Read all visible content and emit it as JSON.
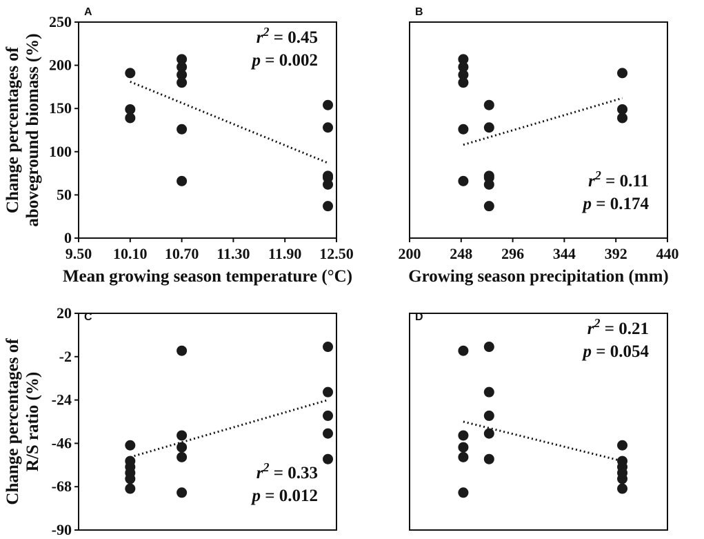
{
  "chart_data": [
    {
      "panel": "A",
      "type": "scatter",
      "xlabel": "Mean growing season temperature (°C)",
      "ylabel": [
        "Change percentages of",
        "aboveground biomass (%)"
      ],
      "xlim": [
        9.5,
        12.5
      ],
      "ylim": [
        0,
        250
      ],
      "xticks": [
        "9.50",
        "10.10",
        "10.70",
        "11.30",
        "11.90",
        "12.50"
      ],
      "yticks": [
        "0",
        "50",
        "100",
        "150",
        "200",
        "250"
      ],
      "points": [
        [
          10.1,
          191
        ],
        [
          10.1,
          149
        ],
        [
          10.1,
          139
        ],
        [
          10.7,
          207
        ],
        [
          10.7,
          198
        ],
        [
          10.7,
          189
        ],
        [
          10.7,
          180
        ],
        [
          10.7,
          126
        ],
        [
          10.7,
          66
        ],
        [
          12.4,
          154
        ],
        [
          12.4,
          128
        ],
        [
          12.4,
          72
        ],
        [
          12.4,
          70
        ],
        [
          12.4,
          62
        ],
        [
          12.4,
          37
        ]
      ],
      "trendline": [
        [
          10.1,
          181
        ],
        [
          12.4,
          87
        ]
      ],
      "stats": {
        "r2_label": "r",
        "r2_sup": "2",
        "r2_value": " = 0.45",
        "p_label": "p",
        "p_value": " = 0.002",
        "position": "top-right"
      }
    },
    {
      "panel": "B",
      "type": "scatter",
      "xlabel": "Growing season precipitation (mm)",
      "ylabel": [],
      "xlim": [
        200,
        440
      ],
      "ylim": [
        0,
        250
      ],
      "xticks": [
        "200",
        "248",
        "296",
        "344",
        "392",
        "440"
      ],
      "yticks": [],
      "points": [
        [
          250,
          207
        ],
        [
          250,
          198
        ],
        [
          250,
          189
        ],
        [
          250,
          180
        ],
        [
          250,
          126
        ],
        [
          250,
          66
        ],
        [
          274,
          154
        ],
        [
          274,
          128
        ],
        [
          274,
          72
        ],
        [
          274,
          70
        ],
        [
          274,
          62
        ],
        [
          274,
          37
        ],
        [
          398,
          191
        ],
        [
          398,
          149
        ],
        [
          398,
          139
        ]
      ],
      "trendline": [
        [
          250,
          108
        ],
        [
          398,
          162
        ]
      ],
      "stats": {
        "r2_label": "r",
        "r2_sup": "2",
        "r2_value": " = 0.11",
        "p_label": "p",
        "p_value": " = 0.174",
        "position": "bottom-right"
      }
    },
    {
      "panel": "C",
      "type": "scatter",
      "xlabel": "",
      "ylabel": [
        "Change percentages of",
        "R/S ratio (%)"
      ],
      "xlim": [
        9.5,
        12.5
      ],
      "ylim": [
        -90,
        20
      ],
      "xticks": [],
      "yticks": [
        "-90",
        "-68",
        "-46",
        "-24",
        "-2",
        "20"
      ],
      "points": [
        [
          10.1,
          -47
        ],
        [
          10.1,
          -55
        ],
        [
          10.1,
          -58
        ],
        [
          10.1,
          -61
        ],
        [
          10.1,
          -64
        ],
        [
          10.1,
          -69
        ],
        [
          10.7,
          1
        ],
        [
          10.7,
          -42
        ],
        [
          10.7,
          -48
        ],
        [
          10.7,
          -53
        ],
        [
          10.7,
          -71
        ],
        [
          12.4,
          3
        ],
        [
          12.4,
          -20
        ],
        [
          12.4,
          -32
        ],
        [
          12.4,
          -41
        ],
        [
          12.4,
          -54
        ]
      ],
      "trendline": [
        [
          10.1,
          -53
        ],
        [
          12.4,
          -24
        ]
      ],
      "stats": {
        "r2_label": "r",
        "r2_sup": "2",
        "r2_value": " = 0.33",
        "p_label": "p",
        "p_value": " = 0.012",
        "position": "bottom-right"
      }
    },
    {
      "panel": "D",
      "type": "scatter",
      "xlabel": "",
      "ylabel": [],
      "xlim": [
        200,
        440
      ],
      "ylim": [
        -90,
        20
      ],
      "xticks": [],
      "yticks": [],
      "points": [
        [
          250,
          1
        ],
        [
          250,
          -42
        ],
        [
          250,
          -48
        ],
        [
          250,
          -53
        ],
        [
          250,
          -71
        ],
        [
          274,
          3
        ],
        [
          274,
          -20
        ],
        [
          274,
          -32
        ],
        [
          274,
          -41
        ],
        [
          274,
          -54
        ],
        [
          398,
          -47
        ],
        [
          398,
          -55
        ],
        [
          398,
          -58
        ],
        [
          398,
          -61
        ],
        [
          398,
          -64
        ],
        [
          398,
          -69
        ]
      ],
      "trendline": [
        [
          250,
          -35
        ],
        [
          398,
          -55
        ]
      ],
      "stats": {
        "r2_label": "r",
        "r2_sup": "2",
        "r2_value": " = 0.21",
        "p_label": "p",
        "p_value": " = 0.054",
        "position": "top-right"
      }
    }
  ]
}
